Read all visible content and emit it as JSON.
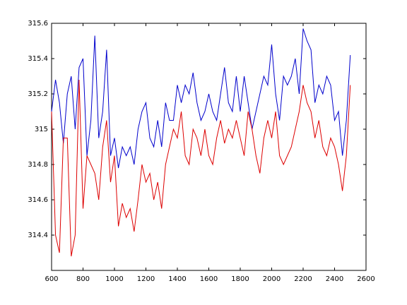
{
  "chart_data": {
    "type": "line",
    "x": [
      600,
      625,
      650,
      675,
      700,
      725,
      750,
      775,
      800,
      825,
      850,
      875,
      900,
      925,
      950,
      975,
      1000,
      1025,
      1050,
      1075,
      1100,
      1125,
      1150,
      1175,
      1200,
      1225,
      1250,
      1275,
      1300,
      1325,
      1350,
      1375,
      1400,
      1425,
      1450,
      1475,
      1500,
      1525,
      1550,
      1575,
      1600,
      1625,
      1650,
      1675,
      1700,
      1725,
      1750,
      1775,
      1800,
      1825,
      1850,
      1875,
      1900,
      1925,
      1950,
      1975,
      2000,
      2025,
      2050,
      2075,
      2100,
      2125,
      2150,
      2175,
      2200,
      2225,
      2250,
      2275,
      2300,
      2325,
      2350,
      2375,
      2400,
      2425,
      2450,
      2475,
      2500
    ],
    "series": [
      {
        "color": "#0000cc",
        "values": [
          315.1,
          315.28,
          315.15,
          314.92,
          315.2,
          315.3,
          315.0,
          315.35,
          315.4,
          314.85,
          315.05,
          315.53,
          314.95,
          315.1,
          315.45,
          314.85,
          314.95,
          314.78,
          314.9,
          314.85,
          314.9,
          314.8,
          315.0,
          315.1,
          315.15,
          314.95,
          314.9,
          315.05,
          314.9,
          315.15,
          315.05,
          315.05,
          315.25,
          315.15,
          315.25,
          315.2,
          315.32,
          315.15,
          315.05,
          315.1,
          315.2,
          315.1,
          315.05,
          315.2,
          315.35,
          315.15,
          315.1,
          315.3,
          315.1,
          315.3,
          315.15,
          315.0,
          315.1,
          315.2,
          315.3,
          315.25,
          315.48,
          315.2,
          315.05,
          315.3,
          315.25,
          315.3,
          315.4,
          315.2,
          315.57,
          315.5,
          315.45,
          315.15,
          315.25,
          315.2,
          315.3,
          315.25,
          315.05,
          315.1,
          314.85,
          315.05,
          315.42
        ]
      },
      {
        "color": "#dd0000",
        "values": [
          315.1,
          314.4,
          314.3,
          314.95,
          314.95,
          314.28,
          314.4,
          315.28,
          314.55,
          314.85,
          314.8,
          314.75,
          314.6,
          314.9,
          315.05,
          314.7,
          314.85,
          314.45,
          314.58,
          314.5,
          314.55,
          314.42,
          314.6,
          314.8,
          314.7,
          314.75,
          314.6,
          314.7,
          314.55,
          314.8,
          314.9,
          315.0,
          314.95,
          315.1,
          314.85,
          314.8,
          315.0,
          314.95,
          314.85,
          315.0,
          314.85,
          314.8,
          314.95,
          315.05,
          314.92,
          315.0,
          314.95,
          315.05,
          314.95,
          314.85,
          315.1,
          315.0,
          314.85,
          314.75,
          314.95,
          315.05,
          314.95,
          315.1,
          314.85,
          314.8,
          314.85,
          314.9,
          315.0,
          315.1,
          315.25,
          315.15,
          315.1,
          314.95,
          315.05,
          314.9,
          314.85,
          314.95,
          314.9,
          314.8,
          314.65,
          314.85,
          315.25
        ]
      }
    ],
    "xlim": [
      600,
      2600
    ],
    "xticks": [
      600,
      800,
      1000,
      1200,
      1400,
      1600,
      1800,
      2000,
      2200,
      2400,
      2600
    ],
    "ylim": [
      314.2,
      315.6
    ],
    "yticks": [
      314.4,
      314.6,
      314.8,
      315,
      315.2,
      315.4,
      315.6
    ]
  }
}
